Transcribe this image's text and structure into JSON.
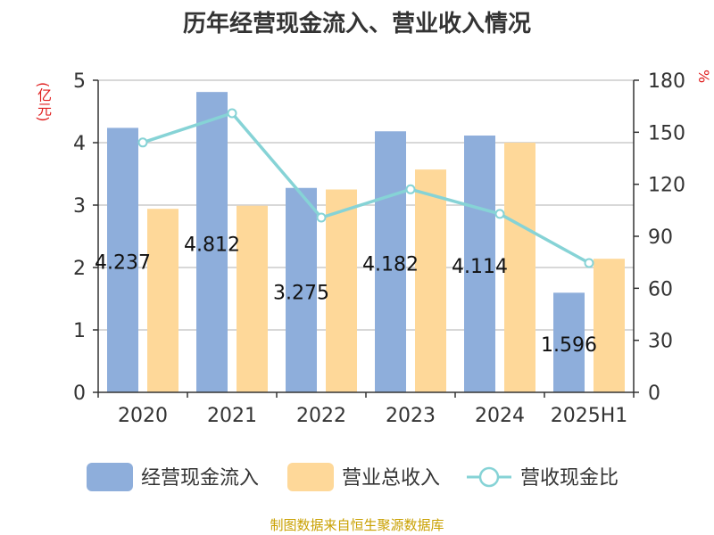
{
  "chart_data": {
    "type": "bar",
    "title": "历年经营现金流入、营业收入情况",
    "left_axis_unit": "(亿元)",
    "right_axis_unit": "%",
    "categories": [
      "2020",
      "2021",
      "2022",
      "2023",
      "2024",
      "2025H1"
    ],
    "series": [
      {
        "name": "经营现金流入",
        "type": "bar",
        "axis": "left",
        "color": "#8eaedb",
        "values": [
          4.237,
          4.812,
          3.275,
          4.182,
          4.114,
          1.596
        ],
        "labels": [
          "4.237",
          "4.812",
          "3.275",
          "4.182",
          "4.114",
          "1.596"
        ]
      },
      {
        "name": "营业总收入",
        "type": "bar",
        "axis": "left",
        "color": "#fed899",
        "values": [
          2.94,
          2.99,
          3.25,
          3.57,
          4.0,
          2.14
        ]
      },
      {
        "name": "营收现金比",
        "type": "line",
        "axis": "right",
        "color": "#86d3d6",
        "values": [
          144.1,
          161.0,
          100.8,
          117.1,
          102.9,
          74.6
        ]
      }
    ],
    "y_left": {
      "min": 0,
      "max": 5,
      "ticks": [
        "0",
        "1",
        "2",
        "3",
        "4",
        "5"
      ]
    },
    "y_right": {
      "min": 0,
      "max": 180,
      "ticks": [
        "0",
        "30",
        "60",
        "90",
        "120",
        "150",
        "180"
      ]
    },
    "grid": true,
    "legend_position": "bottom"
  },
  "footer": "制图数据来自恒生聚源数据库"
}
